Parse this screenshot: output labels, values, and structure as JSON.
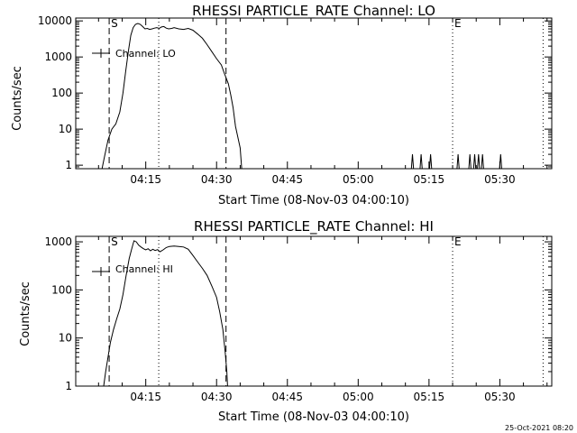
{
  "footer": "25-Oct-2021 08:20",
  "chart_data": [
    {
      "type": "line",
      "title": "RHESSI PARTICLE_RATE Channel: LO",
      "xlabel": "Start Time (08-Nov-03 04:00:10)",
      "ylabel": "Counts/sec",
      "yscale": "log",
      "ylim": [
        0.8,
        12000
      ],
      "xlim": [
        "04:00:10",
        "05:41:00"
      ],
      "y_ticks": [
        {
          "value": 1,
          "label": "1"
        },
        {
          "value": 10,
          "label": "10"
        },
        {
          "value": 100,
          "label": "100"
        },
        {
          "value": 1000,
          "label": "1000"
        },
        {
          "value": 10000,
          "label": "10000"
        }
      ],
      "x_ticks": [
        "04:15",
        "04:30",
        "04:45",
        "05:00",
        "05:15",
        "05:30"
      ],
      "legend": {
        "entries": [
          "Channel: LO"
        ],
        "position": "top-left"
      },
      "markers": [
        {
          "time": "04:07:15",
          "style": "dashed",
          "label": "S"
        },
        {
          "time": "04:17:45",
          "style": "dotted",
          "label": ""
        },
        {
          "time": "04:32:00",
          "style": "dashed",
          "label": ""
        },
        {
          "time": "05:20:00",
          "style": "dotted",
          "label": "E"
        },
        {
          "time": "05:39:10",
          "style": "dotted",
          "label": ""
        }
      ],
      "series": [
        {
          "name": "Channel: LO",
          "points": [
            [
              "04:05:45",
              0.8
            ],
            [
              "04:06:10",
              1.5
            ],
            [
              "04:07:00",
              5
            ],
            [
              "04:07:50",
              10
            ],
            [
              "04:08:40",
              14
            ],
            [
              "04:09:30",
              30
            ],
            [
              "04:10:10",
              100
            ],
            [
              "04:10:45",
              400
            ],
            [
              "04:11:20",
              1500
            ],
            [
              "04:11:50",
              4000
            ],
            [
              "04:12:20",
              6500
            ],
            [
              "04:12:50",
              8000
            ],
            [
              "04:13:20",
              8500
            ],
            [
              "04:13:50",
              8000
            ],
            [
              "04:14:20",
              7000
            ],
            [
              "04:14:50",
              6000
            ],
            [
              "04:15:20",
              6200
            ],
            [
              "04:15:50",
              5800
            ],
            [
              "04:16:20",
              6000
            ],
            [
              "04:16:50",
              6300
            ],
            [
              "04:17:20",
              6500
            ],
            [
              "04:17:50",
              6200
            ],
            [
              "04:18:20",
              6800
            ],
            [
              "04:18:50",
              7000
            ],
            [
              "04:19:20",
              6300
            ],
            [
              "04:19:50",
              6000
            ],
            [
              "04:20:30",
              6200
            ],
            [
              "04:21:00",
              6500
            ],
            [
              "04:22:00",
              6000
            ],
            [
              "04:23:00",
              5800
            ],
            [
              "04:24:00",
              6200
            ],
            [
              "04:25:00",
              5500
            ],
            [
              "04:26:00",
              4300
            ],
            [
              "04:27:00",
              3300
            ],
            [
              "04:28:00",
              2200
            ],
            [
              "04:29:00",
              1400
            ],
            [
              "04:30:00",
              900
            ],
            [
              "04:31:00",
              600
            ],
            [
              "04:31:40",
              350
            ],
            [
              "04:32:30",
              180
            ],
            [
              "04:33:00",
              90
            ],
            [
              "04:33:30",
              40
            ],
            [
              "04:34:00",
              12
            ],
            [
              "04:34:30",
              6
            ],
            [
              "04:35:00",
              3
            ],
            [
              "04:35:20",
              0.8
            ]
          ]
        }
      ],
      "spikes": [
        {
          "time": "05:11:30",
          "value": 2
        },
        {
          "time": "05:13:20",
          "value": 2
        },
        {
          "time": "05:15:20",
          "value": 2
        },
        {
          "time": "05:21:10",
          "value": 2
        },
        {
          "time": "05:23:40",
          "value": 2
        },
        {
          "time": "05:24:40",
          "value": 2
        },
        {
          "time": "05:25:30",
          "value": 2
        },
        {
          "time": "05:26:20",
          "value": 2
        },
        {
          "time": "05:30:10",
          "value": 2
        }
      ]
    },
    {
      "type": "line",
      "title": "RHESSI PARTICLE_RATE Channel: HI",
      "xlabel": "Start Time (08-Nov-03 04:00:10)",
      "ylabel": "Counts/sec",
      "yscale": "log",
      "ylim": [
        1,
        1300
      ],
      "xlim": [
        "04:00:10",
        "05:41:00"
      ],
      "y_ticks": [
        {
          "value": 1,
          "label": "1"
        },
        {
          "value": 10,
          "label": "10"
        },
        {
          "value": 100,
          "label": "100"
        },
        {
          "value": 1000,
          "label": "1000"
        }
      ],
      "x_ticks": [
        "04:15",
        "04:30",
        "04:45",
        "05:00",
        "05:15",
        "05:30"
      ],
      "legend": {
        "entries": [
          "Channel: HI"
        ],
        "position": "top-left"
      },
      "markers": [
        {
          "time": "04:07:15",
          "style": "dashed",
          "label": "S"
        },
        {
          "time": "04:17:45",
          "style": "dotted",
          "label": ""
        },
        {
          "time": "04:32:00",
          "style": "dashed",
          "label": ""
        },
        {
          "time": "05:20:00",
          "style": "dotted",
          "label": "E"
        },
        {
          "time": "05:39:10",
          "style": "dotted",
          "label": ""
        }
      ],
      "series": [
        {
          "name": "Channel: HI",
          "points": [
            [
              "04:06:05",
              1
            ],
            [
              "04:06:30",
              2
            ],
            [
              "04:07:00",
              4
            ],
            [
              "04:07:30",
              8
            ],
            [
              "04:08:10",
              15
            ],
            [
              "04:08:50",
              25
            ],
            [
              "04:09:30",
              40
            ],
            [
              "04:10:10",
              80
            ],
            [
              "04:10:50",
              200
            ],
            [
              "04:11:30",
              450
            ],
            [
              "04:12:00",
              700
            ],
            [
              "04:12:30",
              1050
            ],
            [
              "04:13:00",
              1000
            ],
            [
              "04:13:30",
              850
            ],
            [
              "04:14:00",
              780
            ],
            [
              "04:14:30",
              720
            ],
            [
              "04:15:00",
              680
            ],
            [
              "04:15:30",
              720
            ],
            [
              "04:16:00",
              650
            ],
            [
              "04:16:30",
              700
            ],
            [
              "04:17:00",
              660
            ],
            [
              "04:17:30",
              690
            ],
            [
              "04:18:00",
              620
            ],
            [
              "04:18:40",
              680
            ],
            [
              "04:19:20",
              760
            ],
            [
              "04:20:00",
              800
            ],
            [
              "04:21:00",
              820
            ],
            [
              "04:22:00",
              800
            ],
            [
              "04:23:00",
              780
            ],
            [
              "04:24:00",
              700
            ],
            [
              "04:25:00",
              520
            ],
            [
              "04:26:00",
              380
            ],
            [
              "04:27:00",
              280
            ],
            [
              "04:28:00",
              200
            ],
            [
              "04:29:00",
              120
            ],
            [
              "04:30:00",
              70
            ],
            [
              "04:30:40",
              35
            ],
            [
              "04:31:20",
              15
            ],
            [
              "04:31:50",
              5
            ],
            [
              "04:32:10",
              2
            ],
            [
              "04:32:20",
              1
            ]
          ]
        }
      ],
      "spikes": []
    }
  ]
}
